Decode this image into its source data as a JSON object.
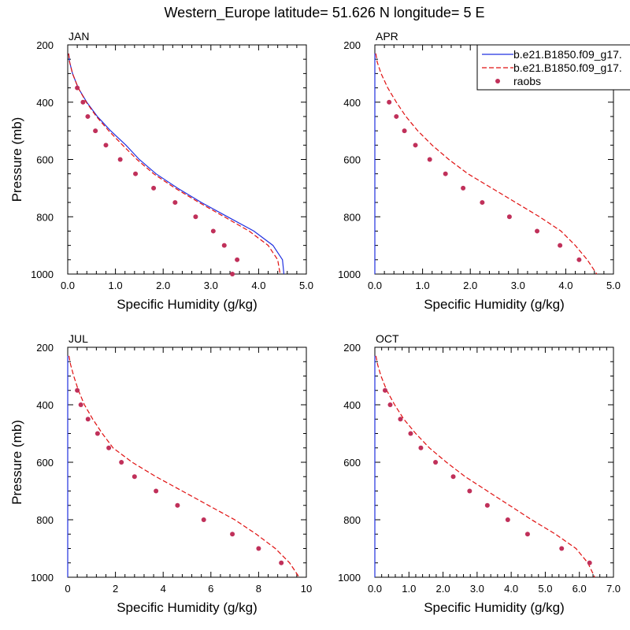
{
  "figure": {
    "title": "Western_Europe  latitude= 51.626 N longitude= 5 E"
  },
  "legend": {
    "entries": [
      {
        "label": "b.e21.B1850.f09_g17.",
        "style": "solid",
        "color": "#2030e0"
      },
      {
        "label": "b.e21.B1850.f09_g17.",
        "style": "dashed",
        "color": "#e01010"
      },
      {
        "label": "raobs",
        "style": "marker",
        "color": "#c0305a"
      }
    ]
  },
  "chart_data": [
    {
      "type": "line",
      "title": "JAN",
      "xlabel": "Specific Humidity (g/kg)",
      "ylabel": "Pressure (mb)",
      "xlim": [
        0,
        5
      ],
      "ylim": [
        200,
        1000
      ],
      "y_inverted": true,
      "xticks": [
        0,
        1,
        2,
        3,
        4,
        5
      ],
      "xtick_labels": [
        "0.0",
        "1.0",
        "2.0",
        "3.0",
        "4.0",
        "5.0"
      ],
      "yticks": [
        200,
        400,
        600,
        800,
        1000
      ],
      "ytick_labels": [
        "200",
        "400",
        "600",
        "800",
        "1000"
      ],
      "series": [
        {
          "name": "b.e21.B1850.f09_g17.",
          "kind": "line",
          "style": "solid",
          "color": "#2030e0",
          "x": [
            0.02,
            0.04,
            0.1,
            0.22,
            0.4,
            0.62,
            0.9,
            1.22,
            1.5,
            1.85,
            2.3,
            2.8,
            3.35,
            3.9,
            4.3,
            4.5,
            4.53
          ],
          "y": [
            230,
            260,
            300,
            350,
            400,
            450,
            500,
            550,
            600,
            650,
            700,
            750,
            800,
            850,
            900,
            950,
            1000
          ]
        },
        {
          "name": "b.e21.B1850.f09_g17.",
          "kind": "line",
          "style": "dashed",
          "color": "#e01010",
          "x": [
            0.02,
            0.04,
            0.1,
            0.22,
            0.39,
            0.6,
            0.86,
            1.15,
            1.45,
            1.8,
            2.25,
            2.75,
            3.28,
            3.8,
            4.2,
            4.4,
            4.45
          ],
          "y": [
            230,
            260,
            300,
            350,
            400,
            450,
            500,
            550,
            600,
            650,
            700,
            750,
            800,
            850,
            900,
            950,
            1000
          ]
        },
        {
          "name": "raobs",
          "kind": "scatter",
          "color": "#c0305a",
          "x": [
            0.2,
            0.32,
            0.42,
            0.58,
            0.8,
            1.1,
            1.42,
            1.8,
            2.25,
            2.68,
            3.05,
            3.28,
            3.55,
            3.45
          ],
          "y": [
            350,
            400,
            450,
            500,
            550,
            600,
            650,
            700,
            750,
            800,
            850,
            900,
            950,
            1000
          ]
        }
      ]
    },
    {
      "type": "line",
      "title": "APR",
      "xlabel": "Specific Humidity (g/kg)",
      "ylabel": "",
      "xlim": [
        0,
        5
      ],
      "ylim": [
        200,
        1000
      ],
      "y_inverted": true,
      "xticks": [
        0,
        1,
        2,
        3,
        4,
        5
      ],
      "xtick_labels": [
        "0.0",
        "1.0",
        "2.0",
        "3.0",
        "4.0",
        "5.0"
      ],
      "yticks": [
        200,
        400,
        600,
        800,
        1000
      ],
      "ytick_labels": [
        "200",
        "400",
        "600",
        "800",
        "1000"
      ],
      "series": [
        {
          "name": "b.e21.B1850.f09_g17.",
          "kind": "line",
          "style": "solid",
          "color": "#2030e0",
          "x": [
            0.0,
            0.0
          ],
          "y": [
            230,
            1000
          ]
        },
        {
          "name": "b.e21.B1850.f09_g17.",
          "kind": "line",
          "style": "dashed",
          "color": "#e01010",
          "x": [
            0.02,
            0.05,
            0.13,
            0.27,
            0.45,
            0.65,
            0.9,
            1.2,
            1.55,
            1.95,
            2.45,
            2.95,
            3.45,
            3.9,
            4.2,
            4.45,
            4.65
          ],
          "y": [
            230,
            260,
            300,
            350,
            400,
            450,
            500,
            550,
            600,
            650,
            700,
            750,
            800,
            850,
            900,
            950,
            1000
          ]
        },
        {
          "name": "raobs",
          "kind": "scatter",
          "color": "#c0305a",
          "x": [
            0.3,
            0.45,
            0.62,
            0.85,
            1.15,
            1.48,
            1.85,
            2.25,
            2.82,
            3.4,
            3.88,
            4.28
          ],
          "y": [
            400,
            450,
            500,
            550,
            600,
            650,
            700,
            750,
            800,
            850,
            900,
            950
          ]
        }
      ]
    },
    {
      "type": "line",
      "title": "JUL",
      "xlabel": "Specific Humidity (g/kg)",
      "ylabel": "Pressure (mb)",
      "xlim": [
        0,
        10
      ],
      "ylim": [
        200,
        1000
      ],
      "y_inverted": true,
      "xticks": [
        0,
        2,
        4,
        6,
        8,
        10
      ],
      "xtick_labels": [
        "0",
        "2",
        "4",
        "6",
        "8",
        "10"
      ],
      "yticks": [
        200,
        400,
        600,
        800,
        1000
      ],
      "ytick_labels": [
        "200",
        "400",
        "600",
        "800",
        "1000"
      ],
      "series": [
        {
          "name": "b.e21.B1850.f09_g17.",
          "kind": "line",
          "style": "solid",
          "color": "#2030e0",
          "x": [
            0.0,
            0.0
          ],
          "y": [
            230,
            1000
          ]
        },
        {
          "name": "b.e21.B1850.f09_g17.",
          "kind": "line",
          "style": "dashed",
          "color": "#e01010",
          "x": [
            0.05,
            0.12,
            0.25,
            0.45,
            0.7,
            1.05,
            1.45,
            1.9,
            2.7,
            3.7,
            4.8,
            5.9,
            7.0,
            7.9,
            8.7,
            9.3,
            9.7
          ],
          "y": [
            230,
            260,
            300,
            350,
            400,
            450,
            500,
            550,
            600,
            650,
            700,
            750,
            800,
            850,
            900,
            950,
            1000
          ]
        },
        {
          "name": "raobs",
          "kind": "scatter",
          "color": "#c0305a",
          "x": [
            0.4,
            0.55,
            0.85,
            1.25,
            1.72,
            2.25,
            2.8,
            3.7,
            4.6,
            5.7,
            6.9,
            8.0,
            8.95
          ],
          "y": [
            350,
            400,
            450,
            500,
            550,
            600,
            650,
            700,
            750,
            800,
            850,
            900,
            950
          ]
        }
      ]
    },
    {
      "type": "line",
      "title": "OCT",
      "xlabel": "Specific Humidity (g/kg)",
      "ylabel": "",
      "xlim": [
        0,
        7
      ],
      "ylim": [
        200,
        1000
      ],
      "y_inverted": true,
      "xticks": [
        0,
        1,
        2,
        3,
        4,
        5,
        6,
        7
      ],
      "xtick_labels": [
        "0.0",
        "1.0",
        "2.0",
        "3.0",
        "4.0",
        "5.0",
        "6.0",
        "7.0"
      ],
      "yticks": [
        200,
        400,
        600,
        800,
        1000
      ],
      "ytick_labels": [
        "200",
        "400",
        "600",
        "800",
        "1000"
      ],
      "series": [
        {
          "name": "b.e21.B1850.f09_g17.",
          "kind": "line",
          "style": "solid",
          "color": "#2030e0",
          "x": [
            0.0,
            0.0
          ],
          "y": [
            230,
            1000
          ]
        },
        {
          "name": "b.e21.B1850.f09_g17.",
          "kind": "line",
          "style": "dashed",
          "color": "#e01010",
          "x": [
            0.03,
            0.08,
            0.18,
            0.35,
            0.58,
            0.85,
            1.2,
            1.6,
            2.1,
            2.65,
            3.3,
            3.95,
            4.6,
            5.3,
            5.9,
            6.25,
            6.45
          ],
          "y": [
            230,
            260,
            300,
            350,
            400,
            450,
            500,
            550,
            600,
            650,
            700,
            750,
            800,
            850,
            900,
            950,
            1000
          ]
        },
        {
          "name": "raobs",
          "kind": "scatter",
          "color": "#c0305a",
          "x": [
            0.3,
            0.45,
            0.75,
            1.05,
            1.35,
            1.78,
            2.3,
            2.78,
            3.3,
            3.9,
            4.48,
            5.48,
            6.3
          ],
          "y": [
            350,
            400,
            450,
            500,
            550,
            600,
            650,
            700,
            750,
            800,
            850,
            900,
            950
          ]
        }
      ]
    }
  ]
}
